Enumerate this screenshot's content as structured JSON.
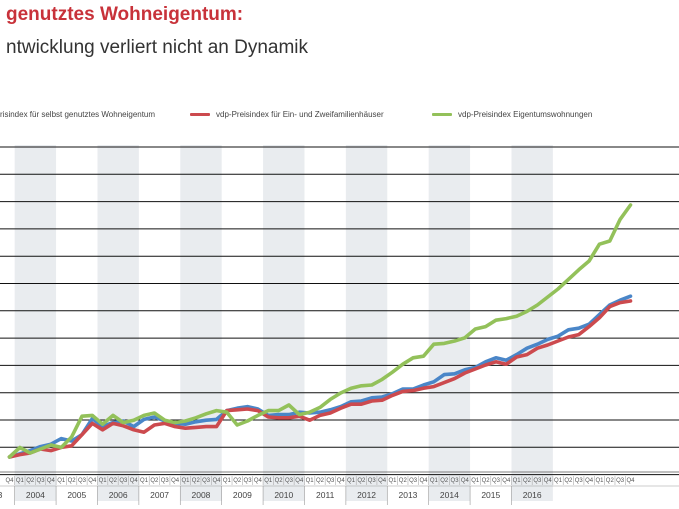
{
  "header": {
    "title": "genutztes Wohneigentum:",
    "subtitle": "ntwicklung verliert nicht an Dynamik"
  },
  "colors": {
    "title": "#c8323a",
    "series_blue": "#4a86c8",
    "series_red": "#cc4a4e",
    "series_green": "#93c15a",
    "band": "#e9ecef",
    "grid": "#111111"
  },
  "chart_data": {
    "type": "line",
    "title": "genutztes Wohneigentum: ntwicklung verliert nicht an Dynamik",
    "xlabel": "",
    "ylabel": "",
    "legend_position": "top",
    "grid": true,
    "quarter_labels": [
      "Q1",
      "Q2",
      "Q3",
      "Q4"
    ],
    "year_labels": [
      "3",
      "2004",
      "2005",
      "2006",
      "2007",
      "2008",
      "2009",
      "2010",
      "2011",
      "2012",
      "2013",
      "2014",
      "2015",
      "2016"
    ],
    "x_start_quarter": "2003-Q4",
    "ylim": [
      95,
      135
    ],
    "series": [
      {
        "name": "risindex für selbst genutztes Wohneigentum",
        "color_key": "series_blue",
        "values": [
          96,
          96.4,
          96.8,
          97.3,
          97.6,
          98.3,
          98.0,
          98.8,
          100.8,
          99.8,
          100.3,
          100.5,
          99.8,
          100.7,
          101.0,
          100.5,
          100.2,
          100.1,
          100.4,
          100.6,
          100.7,
          101.8,
          102.1,
          102.3,
          102.0,
          101.2,
          101.3,
          101.3,
          101.6,
          101.5,
          101.6,
          101.9,
          102.3,
          102.9,
          103.0,
          103.4,
          103.5,
          103.9,
          104.5,
          104.5,
          105.0,
          105.4,
          106.3,
          106.4,
          106.9,
          107.2,
          107.9,
          108.4,
          108.1,
          108.8,
          109.6,
          110.1,
          110.7,
          111.1,
          111.9,
          112.1,
          112.6,
          113.8,
          115.0,
          115.6,
          116.1
        ]
      },
      {
        "name": "vdp-Preisindex für Ein- und Zweifamilienhäuser",
        "color_key": "series_red",
        "values": [
          96,
          96.3,
          96.5,
          97.0,
          96.8,
          97.2,
          97.4,
          98.8,
          100.2,
          99.4,
          100.2,
          99.9,
          99.4,
          99.1,
          100.0,
          100.2,
          99.8,
          99.6,
          99.7,
          99.8,
          99.8,
          101.8,
          101.9,
          102.0,
          101.8,
          101.0,
          100.9,
          100.9,
          101.1,
          100.6,
          101.2,
          101.5,
          102.1,
          102.6,
          102.6,
          103.0,
          103.1,
          103.7,
          104.2,
          104.3,
          104.6,
          104.8,
          105.3,
          105.8,
          106.5,
          107.0,
          107.5,
          107.9,
          107.6,
          108.5,
          108.8,
          109.6,
          110.0,
          110.5,
          111.0,
          111.3,
          112.3,
          113.4,
          114.8,
          115.3,
          115.5
        ]
      },
      {
        "name": "vdp-Preisindex Eigentumswohnungen",
        "color_key": "series_green",
        "values": [
          96,
          97.2,
          96.5,
          97.0,
          97.5,
          97.2,
          98.5,
          101.1,
          101.2,
          100.1,
          101.2,
          100.3,
          100.6,
          101.2,
          101.5,
          100.6,
          100.3,
          100.5,
          100.9,
          101.4,
          101.8,
          101.6,
          100.0,
          100.5,
          101.2,
          101.8,
          101.8,
          102.5,
          101.3,
          101.6,
          102.2,
          103.2,
          104.0,
          104.6,
          104.9,
          105.0,
          105.7,
          106.6,
          107.6,
          108.4,
          108.6,
          110.1,
          110.2,
          110.5,
          110.9,
          112.0,
          112.3,
          113.1,
          113.3,
          113.6,
          114.2,
          115.0,
          116.0,
          117.0,
          118.2,
          119.4,
          120.5,
          122.6,
          123.0,
          125.7,
          127.5
        ]
      }
    ]
  }
}
